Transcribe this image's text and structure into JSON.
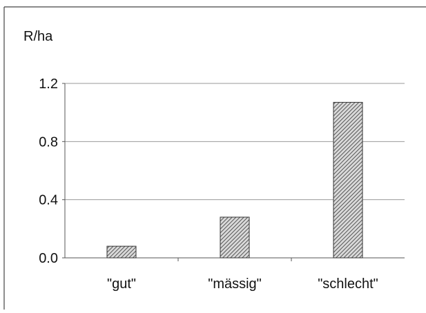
{
  "chart_data": {
    "type": "bar",
    "title": "",
    "xlabel": "",
    "ylabel": "R/ha",
    "categories": [
      "\"gut\"",
      "\"mässig\"",
      "\"schlecht\""
    ],
    "values": [
      0.08,
      0.28,
      1.07
    ],
    "ylim": [
      0,
      1.2
    ],
    "yticks": [
      0.0,
      0.4,
      0.8,
      1.2
    ],
    "ytick_labels": [
      "0.0",
      "0.4",
      "0.8",
      "1.2"
    ],
    "grid": "horizontal",
    "legend": "none",
    "bar_fill": "diagonal hatch",
    "colors": {
      "bar_hatch": "#555555",
      "bar_bg": "#d9d9d9",
      "bar_border": "#333333",
      "grid": "#9a9a9a",
      "axis": "#555555",
      "frame": "#444444"
    }
  }
}
